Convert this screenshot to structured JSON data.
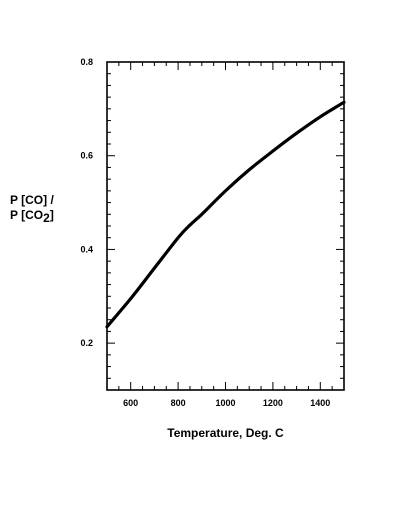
{
  "chart_data": {
    "type": "line",
    "xlabel": "Temperature, Deg. C",
    "ylabel_line1": "P [CO] /",
    "ylabel_line2_main": "P [CO",
    "ylabel_line2_sub": "2",
    "ylabel_line2_end": "]",
    "xlim": [
      500,
      1500
    ],
    "ylim": [
      0.1,
      0.8
    ],
    "x_ticks": [
      600,
      800,
      1000,
      1200,
      1400
    ],
    "y_ticks": [
      0.2,
      0.4,
      0.6,
      0.8
    ],
    "x_tick_labels": [
      "600",
      "800",
      "1000",
      "1200",
      "1400"
    ],
    "y_tick_labels": [
      "0.2",
      "0.4",
      "0.6",
      "0.8"
    ],
    "grid": false,
    "line_color": "#000000",
    "series": [
      {
        "x": [
          500,
          600,
          700,
          800,
          850,
          900,
          1000,
          1100,
          1200,
          1300,
          1400,
          1500
        ],
        "y": [
          0.235,
          0.295,
          0.36,
          0.425,
          0.452,
          0.475,
          0.525,
          0.57,
          0.61,
          0.648,
          0.683,
          0.714
        ]
      }
    ]
  }
}
